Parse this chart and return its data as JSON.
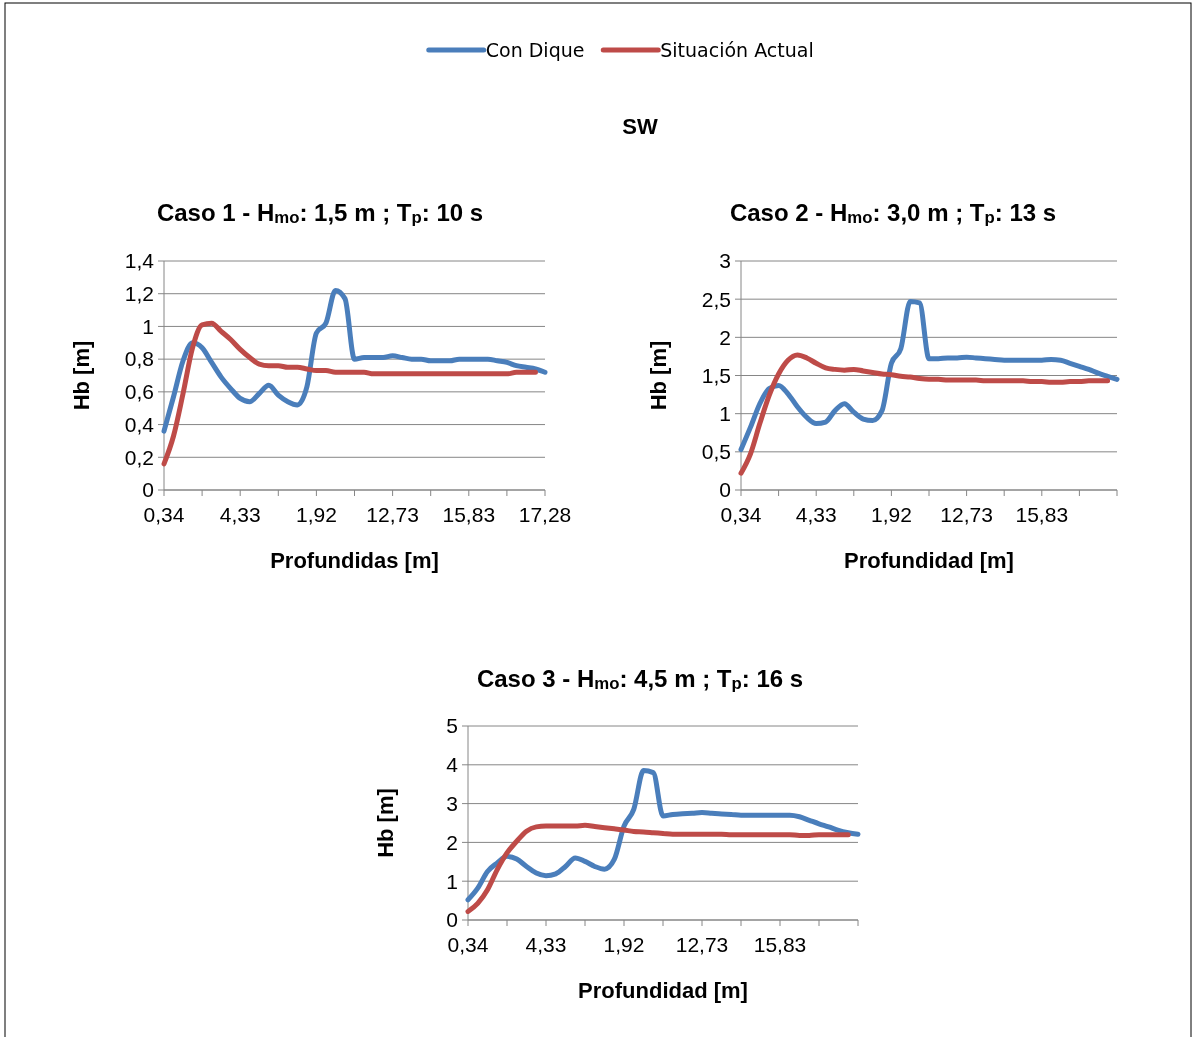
{
  "chart_data": [
    {
      "type": "line",
      "title": "Caso 1 - H$_{mo}$: 1,5 m ; T$_{p}$: 10 s",
      "xlabel": "Profundidas [m]",
      "ylabel": "Hb [m]",
      "annotations": [
        "SW"
      ],
      "legend": "top",
      "grid": "y",
      "categories": [
        "0,34",
        null,
        null,
        null,
        null,
        null,
        null,
        null,
        "4,33",
        null,
        null,
        null,
        null,
        null,
        null,
        null,
        "1,92",
        null,
        null,
        null,
        null,
        null,
        null,
        null,
        "12,73",
        null,
        null,
        null,
        null,
        null,
        null,
        null,
        "15,83",
        null,
        null,
        null,
        null,
        null,
        null,
        null,
        "17,28"
      ],
      "ylim": [
        0,
        1.4
      ],
      "yticks": [
        0,
        {
          "value": 0.2,
          "label": "0,2"
        },
        {
          "value": 0.4,
          "label": "0,4"
        },
        {
          "value": 0.6,
          "label": "0,6"
        },
        {
          "value": 0.8,
          "label": "0,8"
        },
        1,
        {
          "value": 1.2,
          "label": "1,2"
        },
        {
          "value": 1.4,
          "label": "1,4"
        }
      ],
      "series": [
        {
          "name": "Con Dique",
          "color": "#4a7ebb",
          "values": [
            0.36,
            0.57,
            0.79,
            0.9,
            0.87,
            0.78,
            0.69,
            0.62,
            0.56,
            0.54,
            0.59,
            0.64,
            0.58,
            0.54,
            0.52,
            0.63,
            0.96,
            1.02,
            1.22,
            1.17,
            0.8,
            0.81,
            0.81,
            0.81,
            0.82,
            0.81,
            0.8,
            0.8,
            0.79,
            0.79,
            0.79,
            0.8,
            0.8,
            0.8,
            0.8,
            0.79,
            0.78,
            0.76,
            0.75,
            0.74,
            0.72
          ]
        },
        {
          "name": "Situación Actual",
          "color": "#be4b48",
          "values": [
            0.16,
            0.33,
            0.59,
            0.87,
            1.01,
            1.02,
            0.97,
            0.92,
            0.86,
            0.81,
            0.77,
            0.76,
            0.76,
            0.75,
            0.75,
            0.74,
            0.73,
            0.73,
            0.72,
            0.72,
            0.72,
            0.72,
            0.71,
            0.71,
            0.71,
            0.71,
            0.71,
            0.71,
            0.71,
            0.71,
            0.71,
            0.71,
            0.71,
            0.71,
            0.71,
            0.71,
            0.71,
            0.72,
            0.72,
            0.72,
            null
          ]
        }
      ]
    },
    {
      "type": "line",
      "title": "Caso 2 - H$_{mo}$: 3,0 m ; T$_{p}$: 13 s",
      "xlabel": "Profundidad [m]",
      "ylabel": "Hb [m]",
      "grid": "y",
      "categories": [
        "0,34",
        null,
        null,
        null,
        null,
        null,
        null,
        null,
        "4,33",
        null,
        null,
        null,
        null,
        null,
        null,
        null,
        "1,92",
        null,
        null,
        null,
        null,
        null,
        null,
        null,
        "12,73",
        null,
        null,
        null,
        null,
        null,
        null,
        null,
        "15,83",
        null,
        null,
        null,
        null,
        null,
        null,
        null,
        null
      ],
      "ylim": [
        0,
        3
      ],
      "yticks": [
        0,
        {
          "value": 0.5,
          "label": "0,5"
        },
        1,
        {
          "value": 1.5,
          "label": "1,5"
        },
        2,
        {
          "value": 2.5,
          "label": "2,5"
        },
        3
      ],
      "series": [
        {
          "color": "#4a7ebb",
          "values": [
            0.53,
            0.82,
            1.13,
            1.33,
            1.37,
            1.26,
            1.09,
            0.95,
            0.87,
            0.89,
            1.04,
            1.13,
            1.02,
            0.93,
            0.91,
            1.04,
            1.66,
            1.85,
            2.47,
            2.45,
            1.72,
            1.72,
            1.73,
            1.73,
            1.74,
            1.73,
            1.72,
            1.71,
            1.7,
            1.7,
            1.7,
            1.7,
            1.7,
            1.71,
            1.7,
            1.66,
            1.62,
            1.58,
            1.53,
            1.49,
            1.45
          ]
        },
        {
          "color": "#be4b48",
          "values": [
            0.22,
            0.47,
            0.87,
            1.24,
            1.52,
            1.7,
            1.77,
            1.73,
            1.66,
            1.6,
            1.58,
            1.57,
            1.58,
            1.56,
            1.54,
            1.52,
            1.51,
            1.49,
            1.48,
            1.46,
            1.45,
            1.45,
            1.44,
            1.44,
            1.44,
            1.44,
            1.43,
            1.43,
            1.43,
            1.43,
            1.43,
            1.42,
            1.42,
            1.41,
            1.41,
            1.42,
            1.42,
            1.43,
            1.43,
            1.43,
            null
          ]
        }
      ]
    },
    {
      "type": "line",
      "title": "Caso 3 - H$_{mo}$: 4,5 m ; T$_{p}$: 16 s",
      "xlabel": "Profundidad [m]",
      "ylabel": "Hb [m]",
      "grid": "y",
      "categories": [
        "0,34",
        null,
        null,
        null,
        null,
        null,
        null,
        null,
        "4,33",
        null,
        null,
        null,
        null,
        null,
        null,
        null,
        "1,92",
        null,
        null,
        null,
        null,
        null,
        null,
        null,
        "12,73",
        null,
        null,
        null,
        null,
        null,
        null,
        null,
        "15,83",
        null,
        null,
        null,
        null,
        null,
        null,
        null,
        null
      ],
      "ylim": [
        0,
        5
      ],
      "yticks": [
        0,
        1,
        2,
        3,
        4,
        5
      ],
      "series": [
        {
          "color": "#4a7ebb",
          "values": [
            0.52,
            0.82,
            1.25,
            1.47,
            1.64,
            1.57,
            1.38,
            1.21,
            1.14,
            1.19,
            1.38,
            1.6,
            1.51,
            1.38,
            1.31,
            1.56,
            2.42,
            2.85,
            3.85,
            3.8,
            2.68,
            2.72,
            2.74,
            2.75,
            2.77,
            2.75,
            2.73,
            2.72,
            2.7,
            2.7,
            2.7,
            2.7,
            2.7,
            2.7,
            2.66,
            2.57,
            2.48,
            2.4,
            2.31,
            2.25,
            2.21
          ]
        },
        {
          "color": "#be4b48",
          "values": [
            0.22,
            0.43,
            0.78,
            1.3,
            1.73,
            2.03,
            2.29,
            2.4,
            2.42,
            2.42,
            2.42,
            2.42,
            2.44,
            2.41,
            2.38,
            2.35,
            2.32,
            2.28,
            2.27,
            2.25,
            2.23,
            2.21,
            2.21,
            2.21,
            2.21,
            2.21,
            2.21,
            2.2,
            2.2,
            2.2,
            2.2,
            2.2,
            2.2,
            2.2,
            2.18,
            2.18,
            2.2,
            2.2,
            2.2,
            2.2,
            null
          ]
        }
      ]
    }
  ]
}
